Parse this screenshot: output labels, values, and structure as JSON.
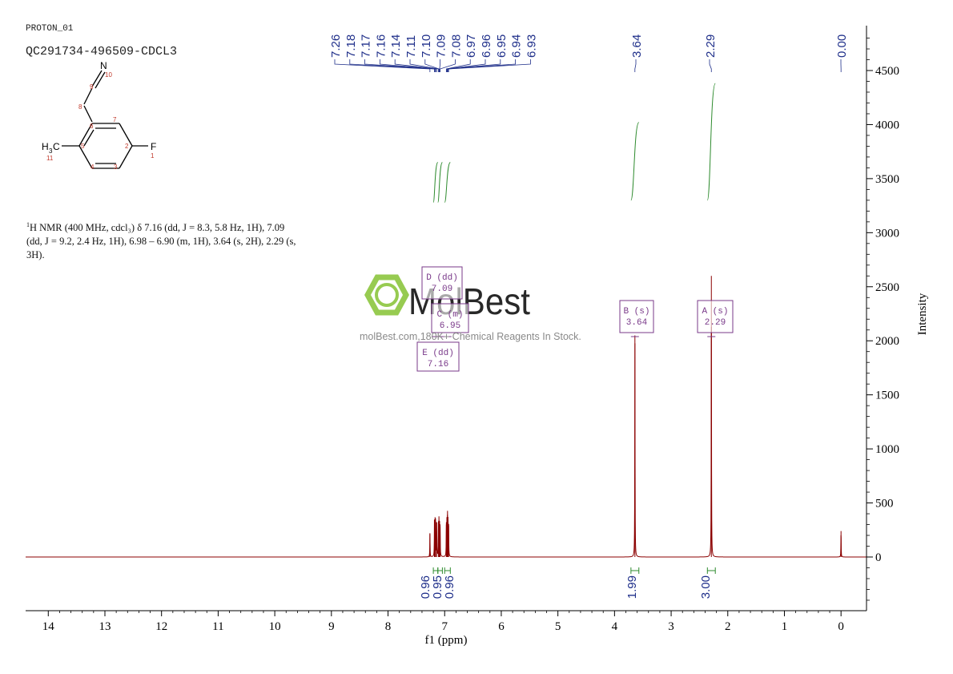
{
  "header": {
    "sample_id": "PROTON_01",
    "sample_code": "QC291734-496509-CDCL3"
  },
  "structure": {
    "atoms": {
      "N": "N",
      "F": "F",
      "H3C": "H",
      "H3C_sub": "3",
      "H3C_C": "C",
      "n10": "10",
      "n9": "9",
      "n8": "8",
      "n7": "7",
      "n6": "6",
      "n5": "5",
      "n4": "4",
      "n3": "3",
      "n2": "2",
      "n1": "1",
      "n11": "11"
    }
  },
  "nmr_summary": {
    "sup": "1",
    "line1": "H NMR (400 MHz, cdcl₃) δ 7.16 (dd, J = 8.3, 5.8 Hz, 1H), 7.09",
    "line2": "(dd, J = 9.2, 2.4 Hz, 1H), 6.98 – 6.90 (m, 1H), 3.64 (s, 2H), 2.29 (s,",
    "line3": "3H)."
  },
  "watermark": {
    "brand": "MolBest",
    "url": "molBest.com,180K+ Chemical Reagents In Stock.",
    "color": "#8cc63f"
  },
  "chart_data": {
    "type": "line",
    "xlabel": "f1 (ppm)",
    "ylabel": "Intensity",
    "xlim": [
      14.4,
      -0.45
    ],
    "ylim": [
      -450,
      4900
    ],
    "x_ticks": [
      14,
      13,
      12,
      11,
      10,
      9,
      8,
      7,
      6,
      5,
      4,
      3,
      2,
      1,
      0
    ],
    "y_ticks": [
      0,
      500,
      1000,
      1500,
      2000,
      2500,
      3000,
      3500,
      4000,
      4500
    ],
    "spectrum_color": "#8b0000",
    "peaks": [
      {
        "ppm": 7.26,
        "height": 220
      },
      {
        "ppm": 7.18,
        "height": 330
      },
      {
        "ppm": 7.17,
        "height": 340
      },
      {
        "ppm": 7.16,
        "height": 330
      },
      {
        "ppm": 7.14,
        "height": 320
      },
      {
        "ppm": 7.11,
        "height": 310
      },
      {
        "ppm": 7.1,
        "height": 340
      },
      {
        "ppm": 7.09,
        "height": 300
      },
      {
        "ppm": 7.08,
        "height": 280
      },
      {
        "ppm": 6.97,
        "height": 300
      },
      {
        "ppm": 6.96,
        "height": 330
      },
      {
        "ppm": 6.95,
        "height": 390
      },
      {
        "ppm": 6.94,
        "height": 330
      },
      {
        "ppm": 6.93,
        "height": 290
      },
      {
        "ppm": 3.64,
        "height": 2050
      },
      {
        "ppm": 2.29,
        "height": 2600
      },
      {
        "ppm": 0.0,
        "height": 240
      }
    ],
    "peak_labels": {
      "color": "#1f2f8a",
      "group1": [
        "7.26",
        "7.18",
        "7.17",
        "7.16",
        "7.14",
        "7.11",
        "7.10",
        "7.09",
        "7.08",
        "6.97",
        "6.96",
        "6.95",
        "6.94",
        "6.93"
      ],
      "group2": [
        "3.64"
      ],
      "group3": [
        "2.29"
      ],
      "group4": [
        "0.00"
      ]
    },
    "integrals": [
      {
        "from": 7.2,
        "to": 7.12,
        "value": "0.96",
        "curve": [
          3280,
          3650
        ]
      },
      {
        "from": 7.12,
        "to": 7.04,
        "value": "0.95",
        "curve": [
          3280,
          3650
        ]
      },
      {
        "from": 7.0,
        "to": 6.9,
        "value": "0.96",
        "curve": [
          3280,
          3650
        ]
      },
      {
        "from": 3.71,
        "to": 3.57,
        "value": "1.99",
        "curve": [
          3300,
          4020
        ]
      },
      {
        "from": 2.36,
        "to": 2.22,
        "value": "3.00",
        "curve": [
          3300,
          4380
        ]
      }
    ],
    "integral_colors": {
      "curve": "#2e8b2e",
      "value": "#1f2f8a"
    },
    "multiplets": [
      {
        "label": "D (dd)",
        "value": "7.09",
        "ppm": 7.09
      },
      {
        "label": "C (m)",
        "value": "6.95",
        "ppm": 6.95
      },
      {
        "label": "E (dd)",
        "value": "7.16",
        "ppm": 7.16
      },
      {
        "label": "B (s)",
        "value": "3.64",
        "ppm": 3.64
      },
      {
        "label": "A (s)",
        "value": "2.29",
        "ppm": 2.29
      }
    ],
    "multiplet_color": "#7a3a8a"
  }
}
